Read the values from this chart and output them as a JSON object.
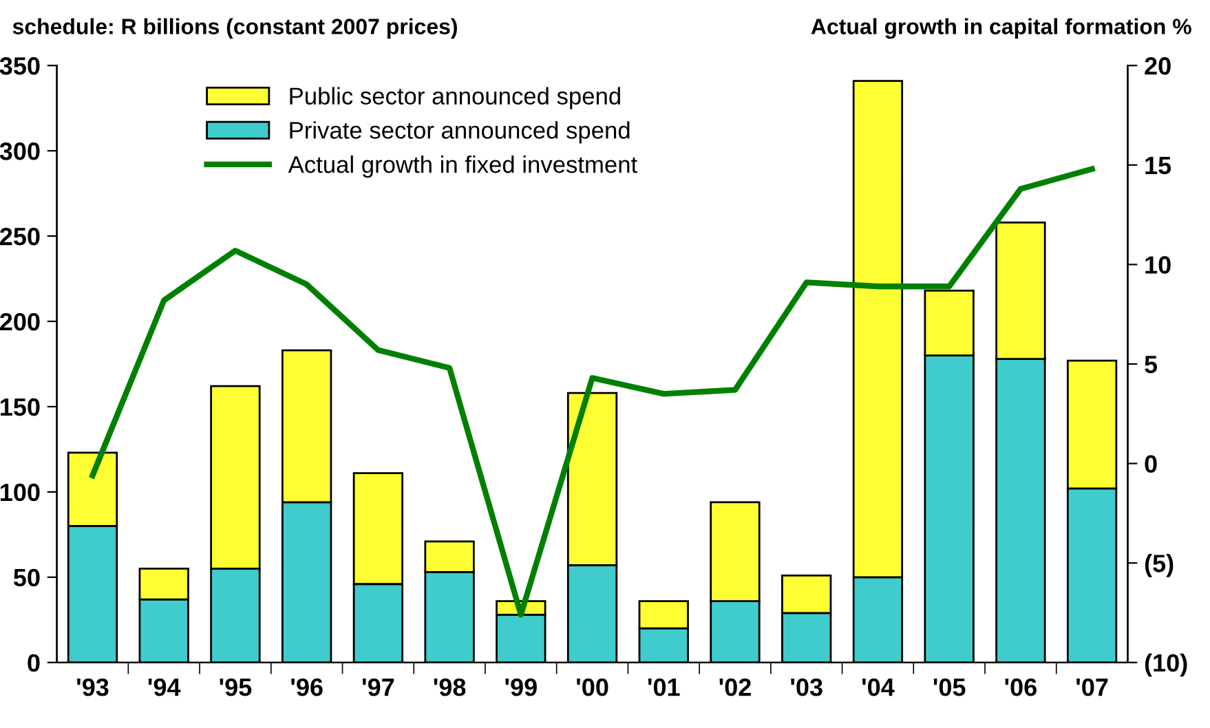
{
  "chart_data": {
    "type": "bar",
    "stacked": true,
    "ylabel": "schedule: R billions (constant 2007 prices)",
    "y2label": "Actual growth in capital formation %",
    "categories": [
      "'93",
      "'94",
      "'95",
      "'96",
      "'97",
      "'98",
      "'99",
      "'00",
      "'01",
      "'02",
      "'03",
      "'04",
      "'05",
      "'06",
      "'07"
    ],
    "series": [
      {
        "name": "Private sector announced spend",
        "color": "#40cccc",
        "values": [
          80,
          37,
          55,
          94,
          46,
          53,
          28,
          57,
          20,
          36,
          29,
          50,
          180,
          178,
          102
        ]
      },
      {
        "name": "Public sector announced spend",
        "color": "#ffff33",
        "values": [
          43,
          18,
          107,
          89,
          65,
          18,
          8,
          101,
          16,
          58,
          22,
          291,
          38,
          80,
          75
        ]
      },
      {
        "name": "Actual growth in fixed investment",
        "type": "line",
        "axis": "y2",
        "color": "#008000",
        "values": [
          -0.6,
          8.2,
          10.7,
          9.0,
          5.7,
          4.8,
          -7.6,
          4.3,
          3.5,
          3.7,
          9.1,
          8.9,
          8.9,
          13.8,
          14.8
        ]
      }
    ],
    "ylim": [
      0,
      350
    ],
    "yticks": [
      0,
      50,
      100,
      150,
      200,
      250,
      300,
      350
    ],
    "y2lim": [
      -10,
      20
    ],
    "y2ticks": [
      {
        "value": -10,
        "label": "(10)"
      },
      {
        "value": -5,
        "label": "(5)"
      },
      0,
      5,
      10,
      15,
      20
    ],
    "legend": "top left",
    "grid": false,
    "marker": "none",
    "line_style": "solid"
  }
}
